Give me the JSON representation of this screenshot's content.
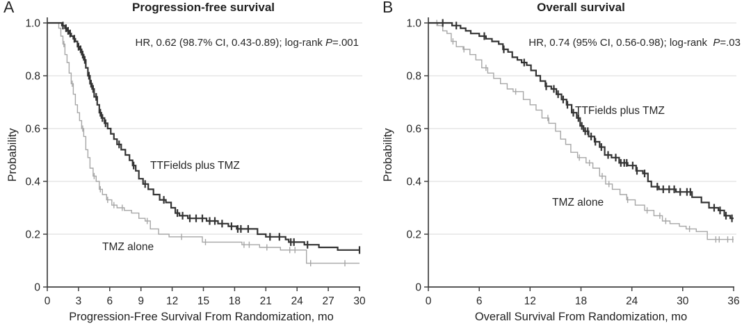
{
  "colors": {
    "dark_series": "#333333",
    "light_series": "#a6a6a6",
    "gridline": "#d9d9d9",
    "axis": "#404040",
    "text": "#262626",
    "background": "#ffffff"
  },
  "chart_data": [
    {
      "type": "line",
      "subtype": "kaplan-meier-step",
      "panel_letter": "A",
      "title": "Progression-free survival",
      "annotation": {
        "before_p": "HR, 0.62 (98.7% CI, 0.43-0.89); log-rank ",
        "p": "P",
        "after_p": "=.001"
      },
      "xlabel": "Progression-Free Survival From Randomization, mo",
      "ylabel": "Probability",
      "xlim": [
        0,
        30
      ],
      "ylim": [
        0,
        1.0
      ],
      "xticks": [
        0,
        3,
        6,
        9,
        12,
        15,
        18,
        21,
        24,
        27,
        30
      ],
      "ytick_values": [
        0,
        0.2,
        0.4,
        0.6,
        0.8,
        1.0
      ],
      "ytick_labels": [
        "0",
        "0.2",
        "0.4",
        "0.6",
        "0.8",
        "1.0"
      ],
      "grid": "horizontal",
      "legend_position": "inline-labels",
      "series": [
        {
          "id": "ttfields-tmz",
          "name": "TTFields plus TMZ",
          "color": "#333333",
          "width": 2.2,
          "points": [
            [
              0,
              1.0
            ],
            [
              1.4,
              0.99
            ],
            [
              1.7,
              0.98
            ],
            [
              1.9,
              0.97
            ],
            [
              2.1,
              0.96
            ],
            [
              2.3,
              0.95
            ],
            [
              2.5,
              0.94
            ],
            [
              2.7,
              0.93
            ],
            [
              2.9,
              0.91
            ],
            [
              3.1,
              0.9
            ],
            [
              3.3,
              0.88
            ],
            [
              3.5,
              0.86
            ],
            [
              3.7,
              0.83
            ],
            [
              3.9,
              0.8
            ],
            [
              4.1,
              0.77
            ],
            [
              4.3,
              0.75
            ],
            [
              4.5,
              0.72
            ],
            [
              4.8,
              0.69
            ],
            [
              5.0,
              0.66
            ],
            [
              5.2,
              0.64
            ],
            [
              5.5,
              0.62
            ],
            [
              5.8,
              0.6
            ],
            [
              6.1,
              0.58
            ],
            [
              6.4,
              0.56
            ],
            [
              6.7,
              0.54
            ],
            [
              7.1,
              0.52
            ],
            [
              7.5,
              0.5
            ],
            [
              7.9,
              0.48
            ],
            [
              8.2,
              0.46
            ],
            [
              8.5,
              0.44
            ],
            [
              8.8,
              0.41
            ],
            [
              9.2,
              0.39
            ],
            [
              9.7,
              0.37
            ],
            [
              10.2,
              0.35
            ],
            [
              10.8,
              0.33
            ],
            [
              11.4,
              0.32
            ],
            [
              11.9,
              0.3
            ],
            [
              12.3,
              0.28
            ],
            [
              12.7,
              0.27
            ],
            [
              13.5,
              0.26
            ],
            [
              15.3,
              0.25
            ],
            [
              16.4,
              0.24
            ],
            [
              17.4,
              0.23
            ],
            [
              18.2,
              0.22
            ],
            [
              20.2,
              0.2
            ],
            [
              21.0,
              0.19
            ],
            [
              22.9,
              0.18
            ],
            [
              23.2,
              0.17
            ],
            [
              24.7,
              0.16
            ],
            [
              26.1,
              0.15
            ],
            [
              27.9,
              0.14
            ],
            [
              30,
              0.14
            ]
          ],
          "censors": [
            1.5,
            1.8,
            2.0,
            2.2,
            2.6,
            3.0,
            3.2,
            3.4,
            3.6,
            4.0,
            4.2,
            4.4,
            4.7,
            5.1,
            5.3,
            5.6,
            6.9,
            8.3,
            9.4,
            11.2,
            12.5,
            13.0,
            13.7,
            14.3,
            14.9,
            15.6,
            16.1,
            16.8,
            17.7,
            18.3,
            18.6,
            19.3,
            21.4,
            22.3,
            23.4,
            23.7,
            25.0,
            30.0
          ]
        },
        {
          "id": "tmz-alone",
          "name": "TMZ alone",
          "color": "#a6a6a6",
          "width": 1.4,
          "points": [
            [
              0,
              1.0
            ],
            [
              1.1,
              0.98
            ],
            [
              1.3,
              0.95
            ],
            [
              1.5,
              0.92
            ],
            [
              1.7,
              0.88
            ],
            [
              1.9,
              0.85
            ],
            [
              2.1,
              0.81
            ],
            [
              2.3,
              0.77
            ],
            [
              2.5,
              0.73
            ],
            [
              2.7,
              0.69
            ],
            [
              2.9,
              0.66
            ],
            [
              3.1,
              0.63
            ],
            [
              3.3,
              0.6
            ],
            [
              3.5,
              0.57
            ],
            [
              3.7,
              0.52
            ],
            [
              3.9,
              0.49
            ],
            [
              4.1,
              0.45
            ],
            [
              4.4,
              0.42
            ],
            [
              4.7,
              0.4
            ],
            [
              5.0,
              0.37
            ],
            [
              5.3,
              0.35
            ],
            [
              5.7,
              0.33
            ],
            [
              6.2,
              0.31
            ],
            [
              6.7,
              0.3
            ],
            [
              7.4,
              0.29
            ],
            [
              8.1,
              0.28
            ],
            [
              8.8,
              0.26
            ],
            [
              9.4,
              0.25
            ],
            [
              9.9,
              0.22
            ],
            [
              10.7,
              0.2
            ],
            [
              11.7,
              0.19
            ],
            [
              14.9,
              0.17
            ],
            [
              18.7,
              0.16
            ],
            [
              20.4,
              0.15
            ],
            [
              22.4,
              0.14
            ],
            [
              24.9,
              0.09
            ],
            [
              30,
              0.09
            ]
          ],
          "censors": [
            1.6,
            2.4,
            3.4,
            4.5,
            5.1,
            5.8,
            6.4,
            7.2,
            9.6,
            12.9,
            15.2,
            18.9,
            19.4,
            21.1,
            23.3,
            23.8,
            25.3,
            28.6
          ]
        }
      ]
    },
    {
      "type": "line",
      "subtype": "kaplan-meier-step",
      "panel_letter": "B",
      "title": "Overall survival",
      "annotation": {
        "before_p": "HR, 0.74 (95% CI, 0.56-0.98); log-rank  ",
        "p": "P",
        "after_p": "=.03"
      },
      "xlabel": "Overall Survival From Randomization, mo",
      "ylabel": "Probability",
      "xlim": [
        0,
        36
      ],
      "ylim": [
        0,
        1.0
      ],
      "xticks": [
        0,
        6,
        12,
        18,
        24,
        30,
        36
      ],
      "ytick_values": [
        0,
        0.2,
        0.4,
        0.6,
        0.8,
        1.0
      ],
      "ytick_labels": [
        "0",
        "0.2",
        "0.4",
        "0.6",
        "0.8",
        "1.0"
      ],
      "grid": "horizontal",
      "legend_position": "inline-labels",
      "series": [
        {
          "id": "ttfields-tmz",
          "name": "TTFields plus TMZ",
          "color": "#333333",
          "width": 2.2,
          "points": [
            [
              0,
              1.0
            ],
            [
              2.8,
              0.99
            ],
            [
              3.8,
              0.98
            ],
            [
              4.4,
              0.97
            ],
            [
              5.0,
              0.96
            ],
            [
              6.0,
              0.95
            ],
            [
              6.8,
              0.94
            ],
            [
              7.5,
              0.93
            ],
            [
              8.3,
              0.92
            ],
            [
              8.8,
              0.9
            ],
            [
              9.4,
              0.89
            ],
            [
              9.9,
              0.87
            ],
            [
              10.5,
              0.86
            ],
            [
              11.0,
              0.85
            ],
            [
              11.6,
              0.84
            ],
            [
              12.1,
              0.82
            ],
            [
              12.7,
              0.8
            ],
            [
              13.2,
              0.78
            ],
            [
              13.8,
              0.76
            ],
            [
              14.5,
              0.75
            ],
            [
              15.1,
              0.73
            ],
            [
              15.7,
              0.71
            ],
            [
              16.3,
              0.69
            ],
            [
              16.9,
              0.66
            ],
            [
              17.5,
              0.64
            ],
            [
              17.9,
              0.61
            ],
            [
              18.3,
              0.59
            ],
            [
              18.9,
              0.57
            ],
            [
              19.6,
              0.55
            ],
            [
              20.2,
              0.53
            ],
            [
              20.8,
              0.5
            ],
            [
              21.6,
              0.49
            ],
            [
              22.5,
              0.47
            ],
            [
              23.5,
              0.46
            ],
            [
              24.5,
              0.44
            ],
            [
              25.3,
              0.43
            ],
            [
              25.9,
              0.4
            ],
            [
              26.3,
              0.38
            ],
            [
              27.2,
              0.37
            ],
            [
              29.2,
              0.36
            ],
            [
              31.1,
              0.34
            ],
            [
              32.2,
              0.32
            ],
            [
              33.1,
              0.3
            ],
            [
              34.2,
              0.29
            ],
            [
              34.9,
              0.27
            ],
            [
              35.6,
              0.26
            ],
            [
              36,
              0.26
            ]
          ],
          "censors": [
            1.7,
            3.3,
            6.6,
            8.9,
            11.3,
            13.9,
            14.8,
            15.3,
            15.9,
            16.4,
            17.1,
            17.7,
            18.1,
            18.5,
            18.8,
            19.2,
            19.7,
            20.4,
            21.2,
            22.1,
            22.7,
            23.1,
            23.4,
            24.1,
            24.6,
            25.5,
            27.0,
            27.7,
            28.4,
            29.0,
            29.7,
            30.5,
            30.9,
            33.7,
            34.4,
            35.1,
            35.8
          ]
        },
        {
          "id": "tmz-alone",
          "name": "TMZ alone",
          "color": "#a6a6a6",
          "width": 1.4,
          "points": [
            [
              0,
              1.0
            ],
            [
              1.1,
              0.99
            ],
            [
              1.7,
              0.97
            ],
            [
              2.2,
              0.96
            ],
            [
              2.7,
              0.93
            ],
            [
              3.3,
              0.91
            ],
            [
              4.1,
              0.9
            ],
            [
              4.9,
              0.88
            ],
            [
              5.6,
              0.86
            ],
            [
              6.3,
              0.83
            ],
            [
              7.0,
              0.81
            ],
            [
              7.7,
              0.79
            ],
            [
              8.5,
              0.77
            ],
            [
              9.3,
              0.75
            ],
            [
              10.0,
              0.74
            ],
            [
              11.2,
              0.71
            ],
            [
              12.0,
              0.69
            ],
            [
              12.7,
              0.67
            ],
            [
              13.4,
              0.64
            ],
            [
              14.2,
              0.62
            ],
            [
              15.0,
              0.59
            ],
            [
              15.6,
              0.56
            ],
            [
              16.2,
              0.54
            ],
            [
              16.8,
              0.51
            ],
            [
              17.6,
              0.49
            ],
            [
              18.6,
              0.47
            ],
            [
              19.4,
              0.45
            ],
            [
              20.2,
              0.42
            ],
            [
              20.9,
              0.39
            ],
            [
              21.7,
              0.37
            ],
            [
              22.6,
              0.35
            ],
            [
              23.4,
              0.33
            ],
            [
              24.4,
              0.31
            ],
            [
              25.5,
              0.29
            ],
            [
              26.6,
              0.27
            ],
            [
              27.6,
              0.25
            ],
            [
              28.5,
              0.24
            ],
            [
              29.6,
              0.23
            ],
            [
              30.4,
              0.22
            ],
            [
              31.6,
              0.21
            ],
            [
              32.9,
              0.18
            ],
            [
              36,
              0.18
            ]
          ],
          "censors": [
            1.0,
            2.9,
            4.2,
            6.8,
            10.3,
            14.1,
            17.8,
            19.0,
            20.5,
            21.3,
            23.5,
            25.8,
            27.3,
            28.0,
            30.8,
            33.9,
            34.3,
            35.3,
            35.9
          ]
        }
      ]
    }
  ]
}
